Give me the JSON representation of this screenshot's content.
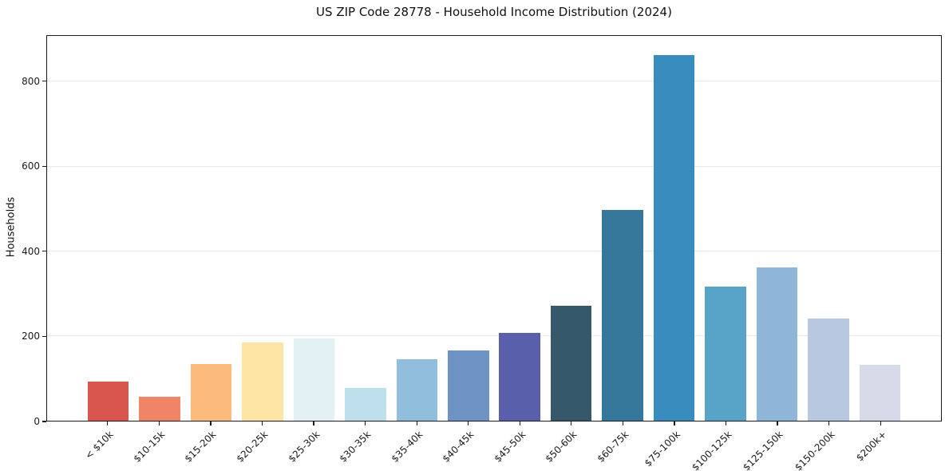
{
  "figure": {
    "background": "#ffffff",
    "spine_color": "#1a1a1a",
    "gridline_color": "#e8e8e8"
  },
  "chart_data": {
    "type": "bar",
    "title": "US ZIP Code 28778 - Household Income Distribution (2024)",
    "xlabel": "",
    "ylabel": "Households",
    "categories": [
      "< $10k",
      "$10-15k",
      "$15-20k",
      "$20-25k",
      "$25-30k",
      "$30-35k",
      "$35-40k",
      "$40-45k",
      "$45-50k",
      "$50-60k",
      "$60-75k",
      "$75-100k",
      "$100-125k",
      "$125-150k",
      "$150-200k",
      "$200k+"
    ],
    "values": [
      92,
      57,
      134,
      185,
      194,
      77,
      146,
      165,
      207,
      271,
      497,
      863,
      316,
      362,
      241,
      132
    ],
    "bar_colors": [
      "#d8564e",
      "#f08467",
      "#fbbb7d",
      "#fde5a6",
      "#e4f1f4",
      "#bedfec",
      "#92bedd",
      "#6c93c4",
      "#5a5fab",
      "#35596b",
      "#35789c",
      "#388cbe",
      "#58a4c8",
      "#8fb6d8",
      "#b7c8e0",
      "#d7dae8"
    ],
    "yticks": [
      0,
      200,
      400,
      600,
      800
    ],
    "ylim": [
      0,
      908
    ],
    "grid": "horizontal",
    "legend": "none",
    "x_tick_rotation_deg": 45,
    "layout": {
      "x_offset_slots": 1.19,
      "x_total_slots": 17.38,
      "bar_width_slots": 0.8
    }
  }
}
